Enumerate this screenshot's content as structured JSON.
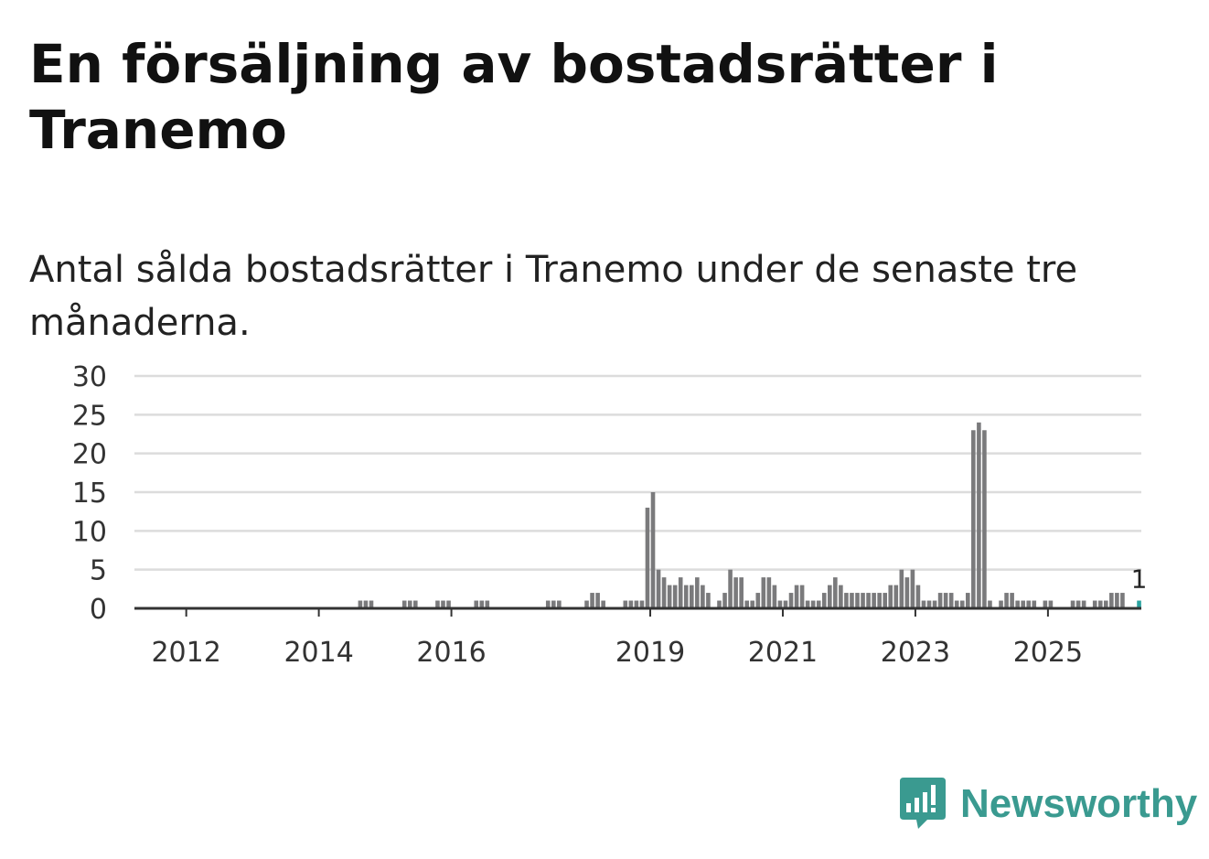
{
  "header": {
    "title": "En försäljning av bostadsrätter i Tranemo",
    "subtitle": "Antal sålda bostadsrätter i Tranemo under de senaste tre månaderna."
  },
  "brand": {
    "name": "Newsworthy",
    "color": "#3a9a90",
    "icon": "newsworthy-logo-icon"
  },
  "colors": {
    "bar": "#7a7a7c",
    "highlight": "#2aa3a0",
    "grid": "#dcdcdc",
    "axis": "#333333"
  },
  "chart_data": {
    "type": "bar",
    "title": "En försäljning av bostadsrätter i Tranemo",
    "subtitle": "Antal sålda bostadsrätter i Tranemo under de senaste tre månaderna.",
    "xlabel": "",
    "ylabel": "",
    "ylim": [
      0,
      30
    ],
    "yticks": [
      "0",
      "5",
      "10",
      "15",
      "20",
      "25",
      "30"
    ],
    "xticks": [
      {
        "label": "2012",
        "year": 2012
      },
      {
        "label": "2014",
        "year": 2014
      },
      {
        "label": "2016",
        "year": 2016
      },
      {
        "label": "2019",
        "year": 2019
      },
      {
        "label": "2021",
        "year": 2021
      },
      {
        "label": "2023",
        "year": 2023
      },
      {
        "label": "2025",
        "year": 2025
      }
    ],
    "start": "2011-04",
    "grid": true,
    "legend": "none",
    "values": [
      0,
      0,
      0,
      0,
      0,
      0,
      0,
      0,
      0,
      0,
      0,
      0,
      0,
      0,
      0,
      0,
      0,
      0,
      0,
      0,
      0,
      0,
      0,
      0,
      0,
      0,
      0,
      0,
      0,
      0,
      0,
      0,
      0,
      0,
      0,
      0,
      0,
      0,
      0,
      0,
      1,
      1,
      1,
      0,
      0,
      0,
      0,
      0,
      1,
      1,
      1,
      0,
      0,
      0,
      1,
      1,
      1,
      0,
      0,
      0,
      0,
      1,
      1,
      1,
      0,
      0,
      0,
      0,
      0,
      0,
      0,
      0,
      0,
      0,
      1,
      1,
      1,
      0,
      0,
      0,
      0,
      1,
      2,
      2,
      1,
      0,
      0,
      0,
      1,
      1,
      1,
      1,
      13,
      15,
      5,
      4,
      3,
      3,
      4,
      3,
      3,
      4,
      3,
      2,
      0,
      1,
      2,
      5,
      4,
      4,
      1,
      1,
      2,
      4,
      4,
      3,
      1,
      1,
      2,
      3,
      3,
      1,
      1,
      1,
      2,
      3,
      4,
      3,
      2,
      2,
      2,
      2,
      2,
      2,
      2,
      2,
      3,
      3,
      5,
      4,
      5,
      3,
      1,
      1,
      1,
      2,
      2,
      2,
      1,
      1,
      2,
      23,
      24,
      23,
      1,
      0,
      1,
      2,
      2,
      1,
      1,
      1,
      1,
      0,
      1,
      1,
      0,
      0,
      0,
      1,
      1,
      1,
      0,
      1,
      1,
      1,
      2,
      2,
      2,
      0,
      0,
      1
    ],
    "highlight_last": true,
    "annotation": {
      "label": "1",
      "value": 1,
      "target": "last"
    }
  }
}
